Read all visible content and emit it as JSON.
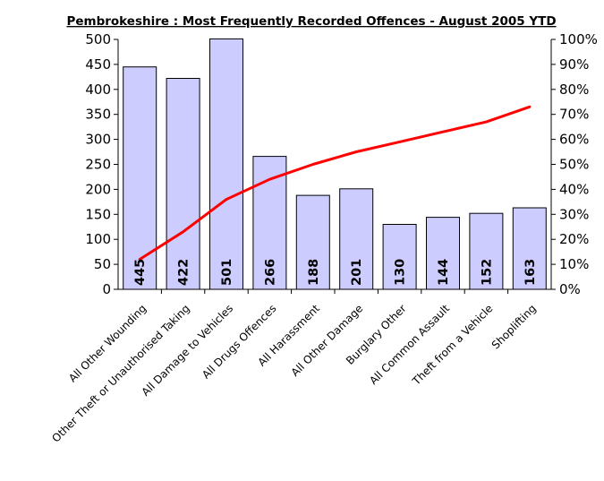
{
  "chart_data": {
    "type": "bar",
    "title": "Pembrokeshire : Most Frequently Recorded Offences - August 2005 YTD",
    "categories": [
      "All Other Wounding",
      "Other Theft or Unauthorised Taking",
      "All Damage to Vehicles",
      "All Drugs Offences",
      "All Harassment",
      "All Other Damage",
      "Burglary Other",
      "All Common Assault",
      "Theft from a Vehicle",
      "Shoplifting"
    ],
    "series": [
      {
        "type": "bar",
        "axis": "left",
        "color": "#ccccff",
        "values": [
          445,
          422,
          501,
          266,
          188,
          201,
          130,
          144,
          152,
          163
        ]
      },
      {
        "type": "line",
        "axis": "right",
        "color": "#ff0000",
        "values": [
          12,
          23,
          36,
          44,
          50,
          55,
          59,
          63,
          67,
          73
        ]
      }
    ],
    "data_labels": [
      "445",
      "422",
      "501",
      "266",
      "188",
      "201",
      "130",
      "144",
      "152",
      "163"
    ],
    "y_left": {
      "min": 0,
      "max": 500,
      "ticks": [
        "0",
        "50",
        "100",
        "150",
        "200",
        "250",
        "300",
        "350",
        "400",
        "450",
        "500"
      ]
    },
    "y_right": {
      "min": 0,
      "max": 100,
      "ticks": [
        "0%",
        "10%",
        "20%",
        "30%",
        "40%",
        "50%",
        "60%",
        "70%",
        "80%",
        "90%",
        "100%"
      ]
    },
    "xlabel": "",
    "ylabel": "",
    "grid": false,
    "legend": "none"
  }
}
